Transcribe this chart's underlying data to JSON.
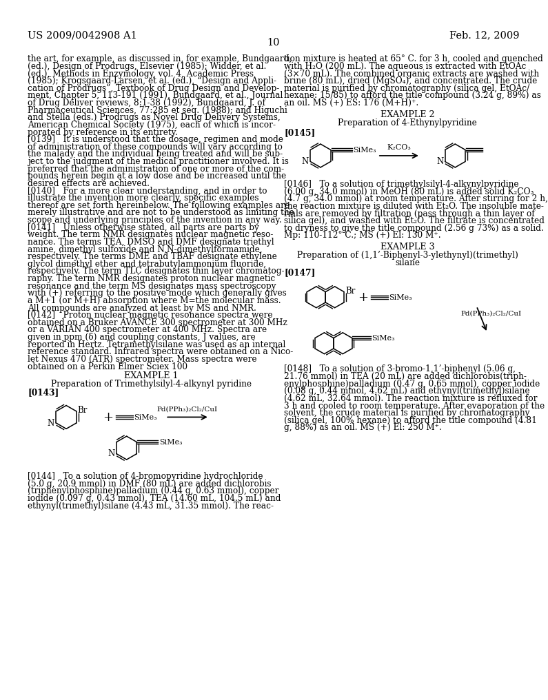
{
  "header_left": "US 2009/0042908 A1",
  "header_right": "Feb. 12, 2009",
  "page_number": "10",
  "bg_color": "#ffffff",
  "left_col_lines": [
    "the art, for example, as discussed in, for example, Bundgaard,",
    "(ed.), Design of Prodrugs, Elsevier (1985); Widder, et al.",
    "(ed.), Methods in Enzymology, vol. 4, Academic Press",
    "(1985); Krogsgaard-Larsen, et al. (ed.), “Design and Appli-",
    "cation of Prodrugs”, Textbook of Drug Design and Develop-",
    "ment, Chapter 5, 113-191 (1991), Bundgaard, et al., Journal",
    "of Drug Deliver reviews, 8:1-38 (1992), Bundgaard, J. of",
    "Pharmaceutical Sciences, 77:285 et seq. (1988); and Higuchi",
    "and Stella (eds.) Prodrugs as Novel Drug Delivery Systems,",
    "American Chemical Society (1975), each of which is incor-",
    "porated by reference in its entirety.",
    "[0139]   It is understood that the dosage, regimen and mode",
    "of administration of these compounds will vary according to",
    "the malady and the individual being treated and will be sub-",
    "ject to the judgment of the medical practitioner involved. It is",
    "preferred that the administration of one or more of the com-",
    "pounds herein begin at a low dose and be increased until the",
    "desired effects are achieved.",
    "[0140]   For a more clear understanding, and in order to",
    "illustrate the invention more clearly, specific examples",
    "thereof are set forth hereinbelow. The following examples are",
    "merely illustrative and are not to be understood as limiting the",
    "scope and underlying principles of the invention in any way.",
    "[0141]   Unless otherwise stated, all parts are parts by",
    "weight. The term NMR designates nuclear magnetic reso-",
    "nance. The terms TEA, DMSO and DMF designate triethyl",
    "amine, dimethyl sulfoxide and N,N-dimethylformamide,",
    "respectively. The terms DME and TBAF designate ethylene",
    "glycol dimethyl ether and tetrabutylammonium fluoride,",
    "respectively. The term TLC designates thin layer chromatog-",
    "raphy. The term NMR designates proton nuclear magnetic",
    "resonance and the term MS designates mass spectroscopy",
    "with (+) referring to the positive mode which generally gives",
    "a M+1 (or M+H) absorption where M=the molecular mass.",
    "All compounds are analyzed at least by MS and NMR.",
    "[0142]   Proton nuclear magnetic resonance spectra were",
    "obtained on a Bruker AVANCE 300 spectrometer at 300 MHz",
    "or a VARIAN 400 spectrometer at 400 MHz. Spectra are",
    "given in ppm (δ) and coupling constants, J values, are",
    "reported in Hertz. Tetramethylsilane was used as an internal",
    "reference standard. Infrared spectra were obtained on a Nico-",
    "let Nexus 470 (ATR) spectrometer. Mass spectra were",
    "obtained on a Perkin Elmer Sciex 100"
  ],
  "right_col_lines_top": [
    "tion mixture is heated at 65° C. for 3 h, cooled and quenched",
    "with H₂O (200 mL). The aqueous is extracted with EtOAc",
    "(3×70 mL). The combined organic extracts are washed with",
    "brine (80 mL), dried (MgSO₄), and concentrated. The crude",
    "material is purified by chromatography (silica gel, EtOAc/",
    "hexane: 15/85) to afford the title compound (3.24 g, 89%) as",
    "an oil. MS (+) ES: 176 (M+H)⁺."
  ],
  "ex2_title": "EXAMPLE 2",
  "ex2_sub": "Preparation of 4-Ethynylpyridine",
  "ex3_title": "EXAMPLE 3",
  "ex3_sub1": "Preparation of (1,1’-Biphenyl-3-ylethynyl)(trimethyl)",
  "ex3_sub2": "silane",
  "right_col_mid_lines": [
    "[0146]   To a solution of trimethylsilyl-4-alkynylpyridine",
    "(6.00 g, 34.0 mmol) in MeOH (80 mL) is added solid K₂CO₃",
    "(4.7 g, 34.0 mmol) at room temperature. After stirring for 2 h,",
    "the reaction mixture is diluted with Et₂O. The insoluble mate-",
    "rials are removed by filtration (pass through a thin layer of",
    "silica gel), and washed with Et₂O. The filtrate is concentrated",
    "to dryness to give the title compound (2.56 g 73%) as a solid.",
    "Mp: 110-112° C.; MS (+) El: 130 M⁺."
  ],
  "right_col_bot_lines": [
    "[0148]   To a solution of 3-bromo-1,1’-biphenyl (5.06 g,",
    "21.76 mmol) in TEA (20 mL) are added dichlorobis(triph-",
    "enylphosphine)palladium (0.47 g, 0.65 mmol), copper iodide",
    "(0.08 g, 0.44 mmol, 4.62 mL) and ethynyl(trimethyl)silane",
    "(4.62 mL, 32.64 mmol). The reaction mixture is refluxed for",
    "3 h and cooled to room temperature. After evaporation of the",
    "solvent, the crude material is purified by chromatography",
    "(silica gel, 100% hexane) to afford the title compound (4.81",
    "g, 88%) as an oil. MS (+) El: 250 M⁺."
  ],
  "left_col_bot_lines": [
    "[0144]   To a solution of 4-bromopyridine hydrochloride",
    "(5.0 g, 20.9 mmol) in DMF (80 mL) are added dichlorobis",
    "(triphenylphosphine)palladium (0.44 g, 0.63 mmol), copper",
    "iodide (0.097 g, 0.43 mmol), TEA (14.60 mL, 104.5 mL) and",
    "ethynyl(trimethyl)silane (4.43 mL, 31.35 mmol). The reac-"
  ]
}
